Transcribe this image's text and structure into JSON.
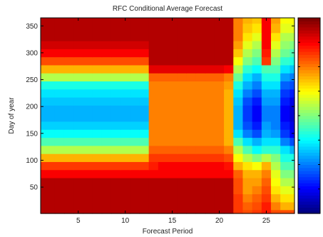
{
  "chart_data": {
    "type": "heatmap",
    "title": "RFC Conditional Average Forecast",
    "xlabel": "Forecast Period",
    "ylabel": "Day of year",
    "xlim": [
      1,
      28
    ],
    "ylim": [
      1,
      365
    ],
    "x_ticks": [
      5,
      10,
      15,
      20,
      25
    ],
    "y_ticks": [
      50,
      100,
      150,
      200,
      250,
      300,
      350
    ],
    "colormap": "jet",
    "colorbar": {
      "placement": "right",
      "tick_labels": []
    },
    "columns": [
      1,
      2,
      3,
      4,
      5,
      6,
      7,
      8,
      9,
      10,
      11,
      12,
      13,
      14,
      15,
      16,
      17,
      18,
      19,
      20,
      21,
      22,
      23,
      24,
      25,
      26,
      27,
      28
    ],
    "rows": [
      1,
      15,
      30,
      45,
      60,
      75,
      90,
      105,
      120,
      135,
      150,
      165,
      180,
      195,
      210,
      225,
      240,
      255,
      270,
      285,
      300,
      315,
      330,
      345,
      365
    ],
    "values": [
      [
        0.95,
        0.95,
        0.95,
        0.95,
        0.95,
        0.95,
        0.95,
        0.95,
        0.95,
        0.95,
        0.95,
        0.95,
        0.95,
        0.95,
        0.95,
        0.95,
        0.95,
        0.95,
        0.95,
        0.95,
        0.95,
        0.82,
        0.8,
        0.82,
        0.85,
        0.8,
        0.8,
        0.8
      ],
      [
        0.95,
        0.95,
        0.95,
        0.95,
        0.95,
        0.95,
        0.95,
        0.95,
        0.95,
        0.95,
        0.95,
        0.95,
        0.95,
        0.95,
        0.95,
        0.95,
        0.95,
        0.95,
        0.95,
        0.95,
        0.95,
        0.82,
        0.78,
        0.8,
        0.85,
        0.75,
        0.7,
        0.7
      ],
      [
        0.95,
        0.95,
        0.95,
        0.95,
        0.95,
        0.95,
        0.95,
        0.95,
        0.95,
        0.95,
        0.95,
        0.95,
        0.95,
        0.95,
        0.95,
        0.95,
        0.95,
        0.95,
        0.95,
        0.95,
        0.95,
        0.82,
        0.75,
        0.78,
        0.82,
        0.7,
        0.65,
        0.65
      ],
      [
        0.95,
        0.95,
        0.95,
        0.95,
        0.95,
        0.95,
        0.95,
        0.95,
        0.95,
        0.95,
        0.95,
        0.95,
        0.95,
        0.95,
        0.95,
        0.95,
        0.95,
        0.95,
        0.95,
        0.95,
        0.95,
        0.8,
        0.72,
        0.75,
        0.8,
        0.65,
        0.6,
        0.6
      ],
      [
        0.95,
        0.95,
        0.95,
        0.95,
        0.95,
        0.95,
        0.95,
        0.95,
        0.95,
        0.95,
        0.95,
        0.95,
        0.95,
        0.95,
        0.95,
        0.95,
        0.95,
        0.95,
        0.95,
        0.95,
        0.95,
        0.8,
        0.72,
        0.72,
        0.78,
        0.62,
        0.55,
        0.55
      ],
      [
        0.88,
        0.88,
        0.88,
        0.88,
        0.88,
        0.88,
        0.88,
        0.88,
        0.88,
        0.88,
        0.88,
        0.88,
        0.88,
        0.88,
        0.88,
        0.88,
        0.88,
        0.88,
        0.88,
        0.88,
        0.88,
        0.78,
        0.7,
        0.7,
        0.75,
        0.6,
        0.5,
        0.5
      ],
      [
        0.82,
        0.82,
        0.82,
        0.82,
        0.82,
        0.82,
        0.82,
        0.82,
        0.82,
        0.82,
        0.82,
        0.82,
        0.85,
        0.88,
        0.88,
        0.88,
        0.88,
        0.88,
        0.88,
        0.88,
        0.86,
        0.7,
        0.65,
        0.62,
        0.7,
        0.55,
        0.45,
        0.45
      ],
      [
        0.7,
        0.7,
        0.7,
        0.7,
        0.7,
        0.7,
        0.7,
        0.7,
        0.7,
        0.7,
        0.7,
        0.7,
        0.82,
        0.82,
        0.82,
        0.82,
        0.82,
        0.82,
        0.82,
        0.82,
        0.8,
        0.62,
        0.55,
        0.5,
        0.55,
        0.5,
        0.4,
        0.4
      ],
      [
        0.55,
        0.55,
        0.55,
        0.55,
        0.55,
        0.55,
        0.55,
        0.55,
        0.55,
        0.55,
        0.55,
        0.55,
        0.78,
        0.78,
        0.78,
        0.78,
        0.78,
        0.78,
        0.78,
        0.78,
        0.75,
        0.55,
        0.45,
        0.38,
        0.42,
        0.42,
        0.35,
        0.3
      ],
      [
        0.45,
        0.45,
        0.45,
        0.45,
        0.45,
        0.45,
        0.45,
        0.45,
        0.45,
        0.45,
        0.45,
        0.45,
        0.75,
        0.75,
        0.75,
        0.75,
        0.75,
        0.75,
        0.75,
        0.75,
        0.7,
        0.45,
        0.35,
        0.3,
        0.35,
        0.35,
        0.25,
        0.2
      ],
      [
        0.38,
        0.38,
        0.38,
        0.38,
        0.38,
        0.38,
        0.38,
        0.38,
        0.38,
        0.38,
        0.38,
        0.38,
        0.75,
        0.75,
        0.75,
        0.75,
        0.75,
        0.75,
        0.75,
        0.75,
        0.7,
        0.35,
        0.25,
        0.2,
        0.3,
        0.28,
        0.18,
        0.12
      ],
      [
        0.33,
        0.33,
        0.33,
        0.33,
        0.33,
        0.33,
        0.33,
        0.33,
        0.33,
        0.33,
        0.33,
        0.33,
        0.75,
        0.75,
        0.75,
        0.75,
        0.75,
        0.75,
        0.75,
        0.75,
        0.7,
        0.3,
        0.2,
        0.15,
        0.28,
        0.25,
        0.15,
        0.1
      ],
      [
        0.3,
        0.3,
        0.3,
        0.3,
        0.3,
        0.3,
        0.3,
        0.3,
        0.3,
        0.3,
        0.3,
        0.3,
        0.75,
        0.75,
        0.75,
        0.75,
        0.75,
        0.75,
        0.75,
        0.75,
        0.7,
        0.3,
        0.18,
        0.12,
        0.25,
        0.25,
        0.12,
        0.08
      ],
      [
        0.3,
        0.3,
        0.3,
        0.3,
        0.3,
        0.3,
        0.3,
        0.3,
        0.3,
        0.3,
        0.3,
        0.3,
        0.75,
        0.75,
        0.75,
        0.75,
        0.75,
        0.75,
        0.75,
        0.75,
        0.7,
        0.3,
        0.18,
        0.12,
        0.25,
        0.25,
        0.12,
        0.08
      ],
      [
        0.32,
        0.32,
        0.32,
        0.32,
        0.32,
        0.32,
        0.32,
        0.32,
        0.32,
        0.32,
        0.32,
        0.32,
        0.75,
        0.75,
        0.75,
        0.75,
        0.75,
        0.75,
        0.75,
        0.75,
        0.7,
        0.32,
        0.2,
        0.15,
        0.28,
        0.28,
        0.15,
        0.1
      ],
      [
        0.35,
        0.35,
        0.35,
        0.35,
        0.35,
        0.35,
        0.35,
        0.35,
        0.35,
        0.35,
        0.35,
        0.35,
        0.75,
        0.75,
        0.75,
        0.75,
        0.75,
        0.75,
        0.75,
        0.75,
        0.7,
        0.35,
        0.25,
        0.2,
        0.3,
        0.3,
        0.18,
        0.15
      ],
      [
        0.4,
        0.4,
        0.4,
        0.4,
        0.4,
        0.4,
        0.4,
        0.4,
        0.4,
        0.4,
        0.4,
        0.4,
        0.75,
        0.75,
        0.75,
        0.75,
        0.75,
        0.75,
        0.75,
        0.75,
        0.72,
        0.4,
        0.3,
        0.25,
        0.35,
        0.35,
        0.22,
        0.2
      ],
      [
        0.55,
        0.55,
        0.55,
        0.55,
        0.55,
        0.55,
        0.55,
        0.55,
        0.55,
        0.55,
        0.55,
        0.55,
        0.78,
        0.78,
        0.78,
        0.78,
        0.78,
        0.78,
        0.78,
        0.78,
        0.75,
        0.48,
        0.35,
        0.3,
        0.4,
        0.4,
        0.28,
        0.25
      ],
      [
        0.7,
        0.7,
        0.7,
        0.7,
        0.7,
        0.7,
        0.7,
        0.7,
        0.7,
        0.7,
        0.7,
        0.7,
        0.9,
        0.9,
        0.9,
        0.9,
        0.9,
        0.9,
        0.9,
        0.9,
        0.88,
        0.55,
        0.42,
        0.38,
        0.45,
        0.45,
        0.35,
        0.32
      ],
      [
        0.8,
        0.8,
        0.8,
        0.8,
        0.8,
        0.8,
        0.8,
        0.8,
        0.8,
        0.8,
        0.8,
        0.8,
        0.95,
        0.95,
        0.95,
        0.95,
        0.95,
        0.95,
        0.95,
        0.95,
        0.95,
        0.62,
        0.5,
        0.45,
        0.82,
        0.5,
        0.42,
        0.4
      ],
      [
        0.88,
        0.88,
        0.88,
        0.88,
        0.88,
        0.88,
        0.88,
        0.88,
        0.88,
        0.88,
        0.88,
        0.88,
        0.95,
        0.95,
        0.95,
        0.95,
        0.95,
        0.95,
        0.95,
        0.95,
        0.95,
        0.68,
        0.55,
        0.5,
        0.85,
        0.55,
        0.48,
        0.45
      ],
      [
        0.92,
        0.92,
        0.92,
        0.92,
        0.92,
        0.92,
        0.92,
        0.92,
        0.92,
        0.92,
        0.92,
        0.92,
        0.95,
        0.95,
        0.95,
        0.95,
        0.95,
        0.95,
        0.95,
        0.95,
        0.95,
        0.72,
        0.6,
        0.55,
        0.88,
        0.6,
        0.52,
        0.5
      ],
      [
        0.95,
        0.95,
        0.95,
        0.95,
        0.95,
        0.95,
        0.95,
        0.95,
        0.95,
        0.95,
        0.95,
        0.95,
        0.95,
        0.95,
        0.95,
        0.95,
        0.95,
        0.95,
        0.95,
        0.95,
        0.95,
        0.75,
        0.65,
        0.6,
        0.88,
        0.65,
        0.55,
        0.55
      ],
      [
        0.95,
        0.95,
        0.95,
        0.95,
        0.95,
        0.95,
        0.95,
        0.95,
        0.95,
        0.95,
        0.95,
        0.95,
        0.95,
        0.95,
        0.95,
        0.95,
        0.95,
        0.95,
        0.95,
        0.95,
        0.95,
        0.75,
        0.68,
        0.65,
        0.88,
        0.7,
        0.6,
        0.6
      ],
      [
        0.95,
        0.95,
        0.95,
        0.95,
        0.95,
        0.95,
        0.95,
        0.95,
        0.95,
        0.95,
        0.95,
        0.95,
        0.95,
        0.95,
        0.95,
        0.95,
        0.95,
        0.95,
        0.95,
        0.95,
        0.95,
        0.75,
        0.7,
        0.68,
        0.88,
        0.72,
        0.62,
        0.62
      ]
    ]
  }
}
